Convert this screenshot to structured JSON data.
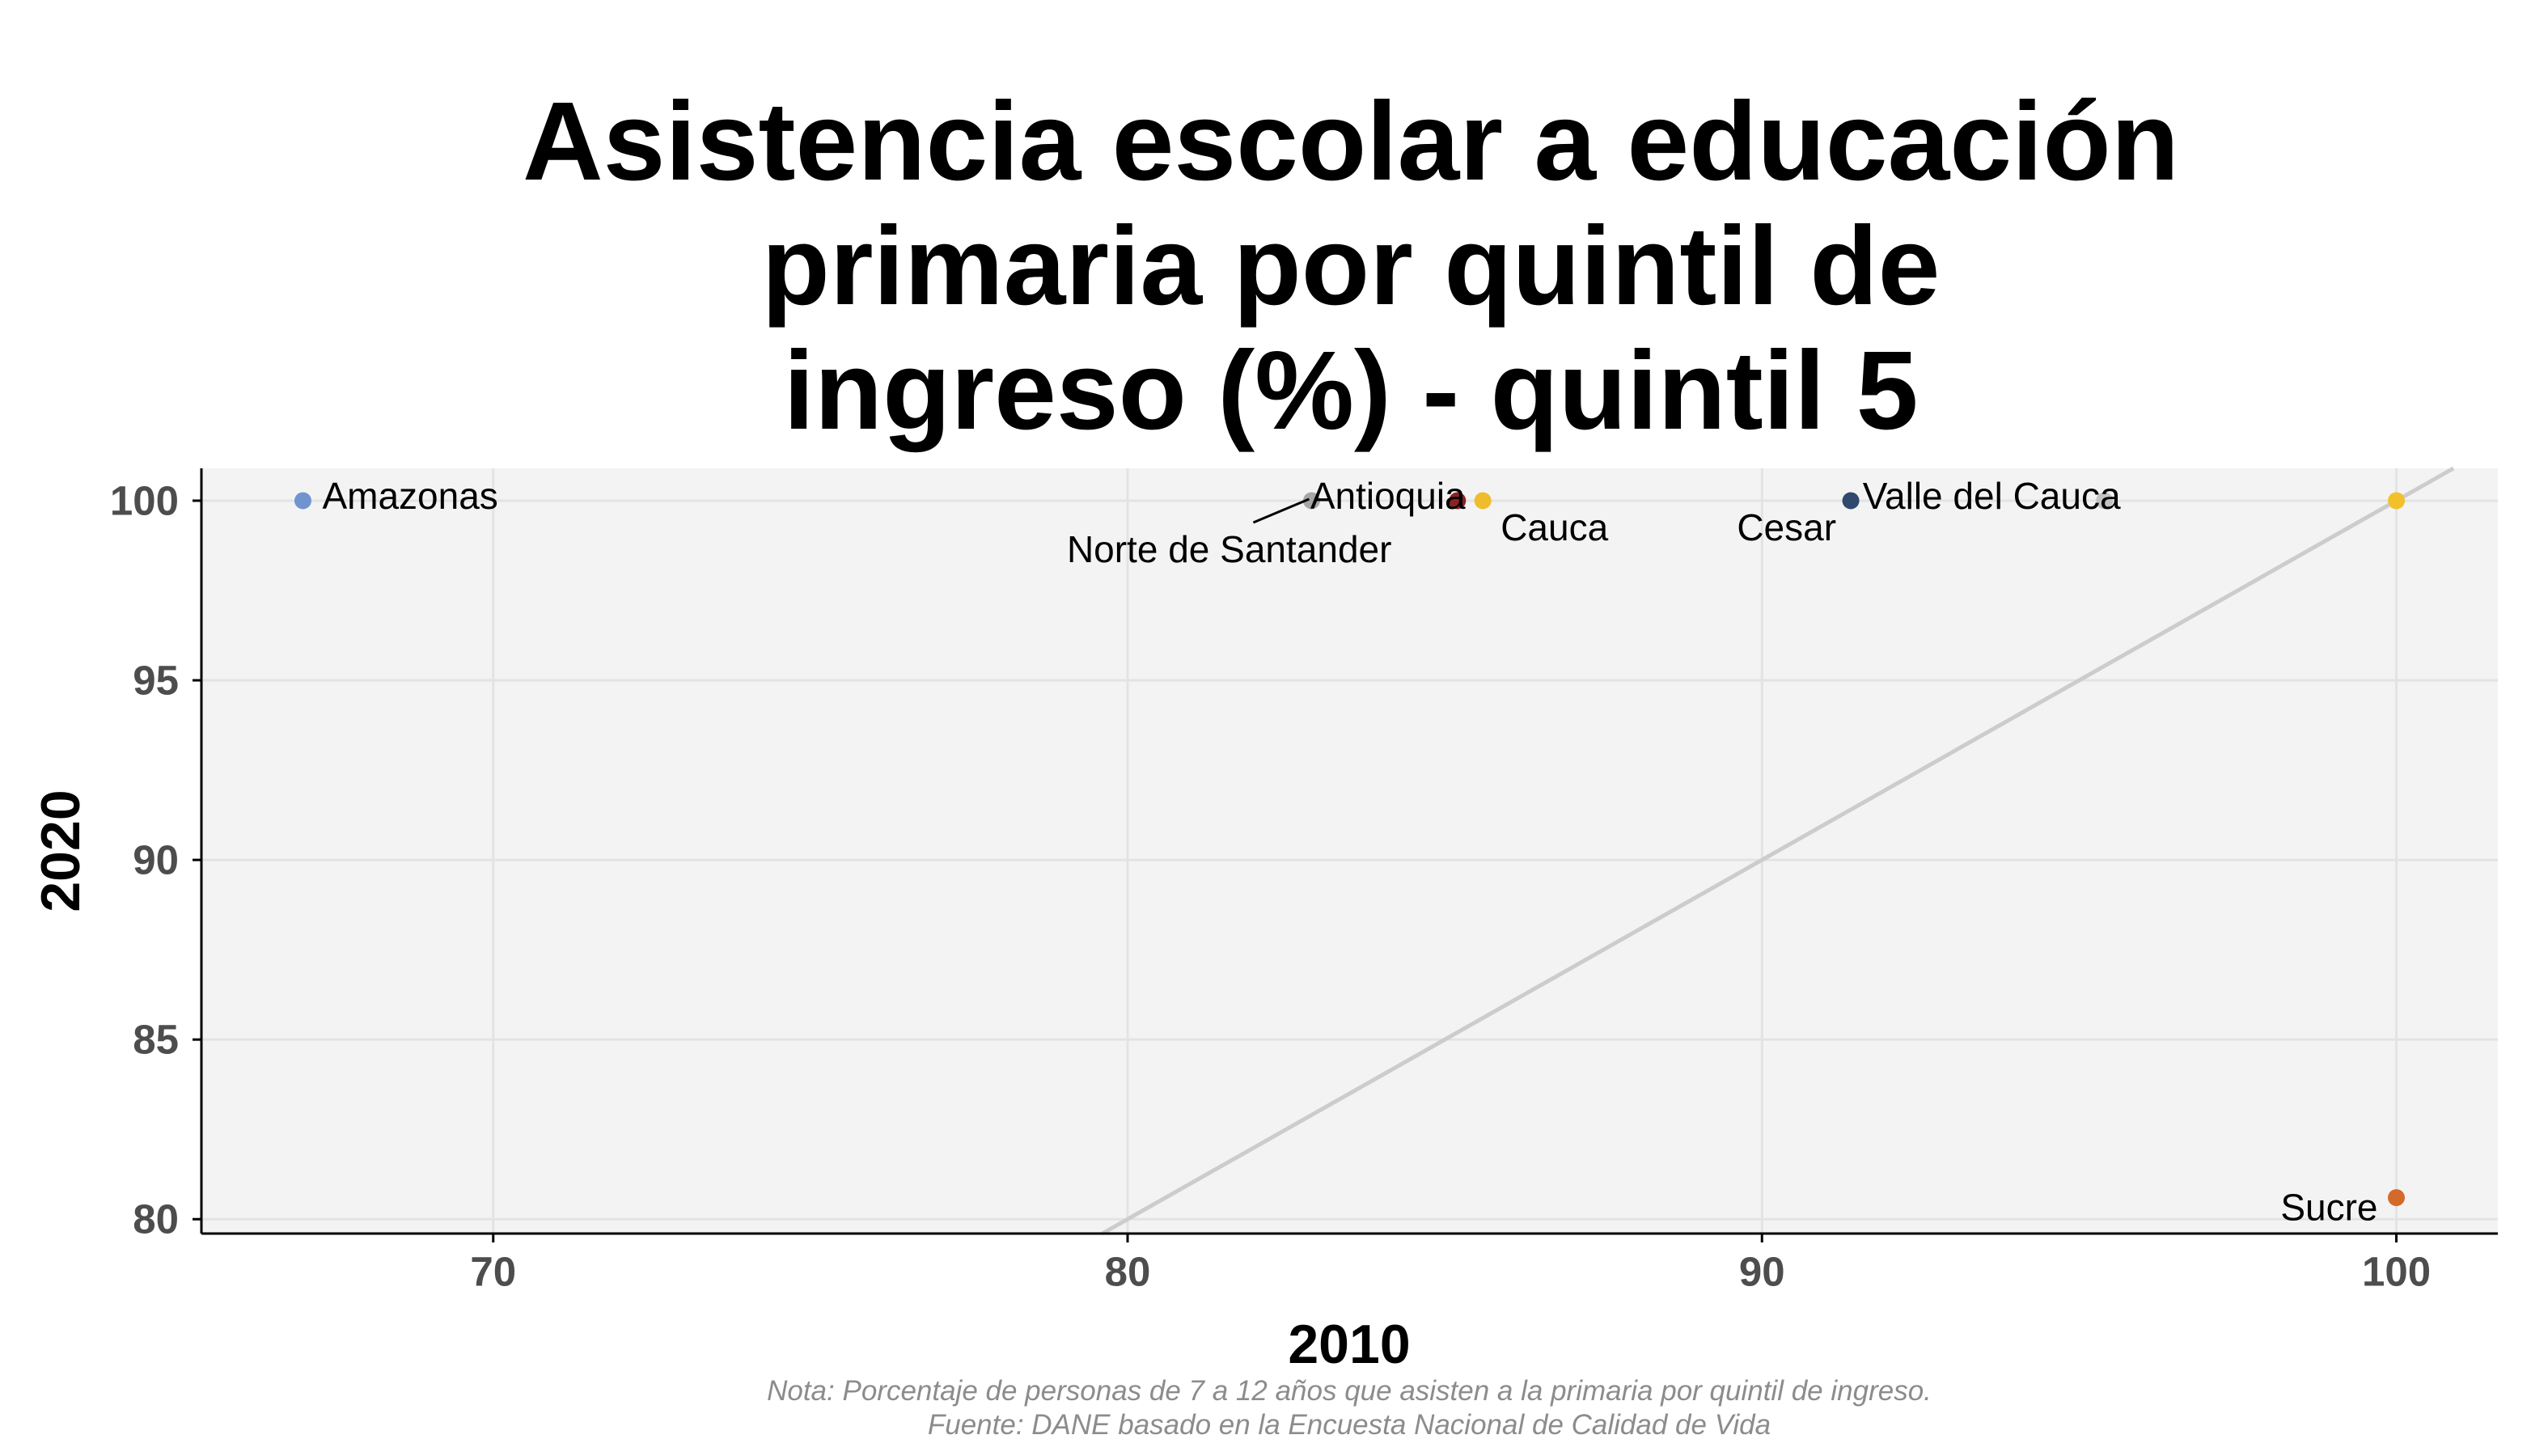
{
  "chart_data": {
    "type": "scatter",
    "title": [
      "Asistencia escolar a educación",
      "primaria por quintil de",
      "ingreso (%) - quintil 5"
    ],
    "xlabel": "2010",
    "ylabel": "2020",
    "xlim": [
      65.4,
      101.6
    ],
    "ylim": [
      79.6,
      100.9
    ],
    "xticks": [
      70,
      80,
      90,
      100
    ],
    "yticks": [
      100,
      95,
      90,
      85,
      80
    ],
    "grid": true,
    "reference_line": {
      "slope": 1,
      "intercept": 0,
      "color": "#cccccc"
    },
    "points": [
      {
        "label": "Amazonas",
        "x": 67.0,
        "y": 100,
        "color": "#7094cf"
      },
      {
        "label": "Norte de Santander",
        "x": 82.9,
        "y": 100,
        "color": "#a6a6a6"
      },
      {
        "label": "Antioquia",
        "x": 85.2,
        "y": 100,
        "color": "#8b2222"
      },
      {
        "label": "Cauca",
        "x": 85.6,
        "y": 100,
        "color": "#efbd2b"
      },
      {
        "label": "Cesar",
        "x": 91.4,
        "y": 100,
        "color": "#2f4a6d"
      },
      {
        "label": "Valle del Cauca",
        "x": 95.4,
        "y": 100,
        "color": "#c2c2c2"
      },
      {
        "x": 100,
        "y": 100,
        "color": "#f2c12a"
      },
      {
        "label": "Sucre",
        "x": 100,
        "y": 80.6,
        "color": "#d46a2a"
      }
    ]
  },
  "caption": {
    "note": "Nota: Porcentaje de personas de 7 a 12 años que asisten a la primaria por quintil de ingreso.",
    "source": "Fuente: DANE basado en la Encuesta Nacional de Calidad de Vida"
  },
  "colors": {
    "panel_background": "#f3f3f3",
    "gridline": "#e3e3e3",
    "axis": "#000000"
  }
}
